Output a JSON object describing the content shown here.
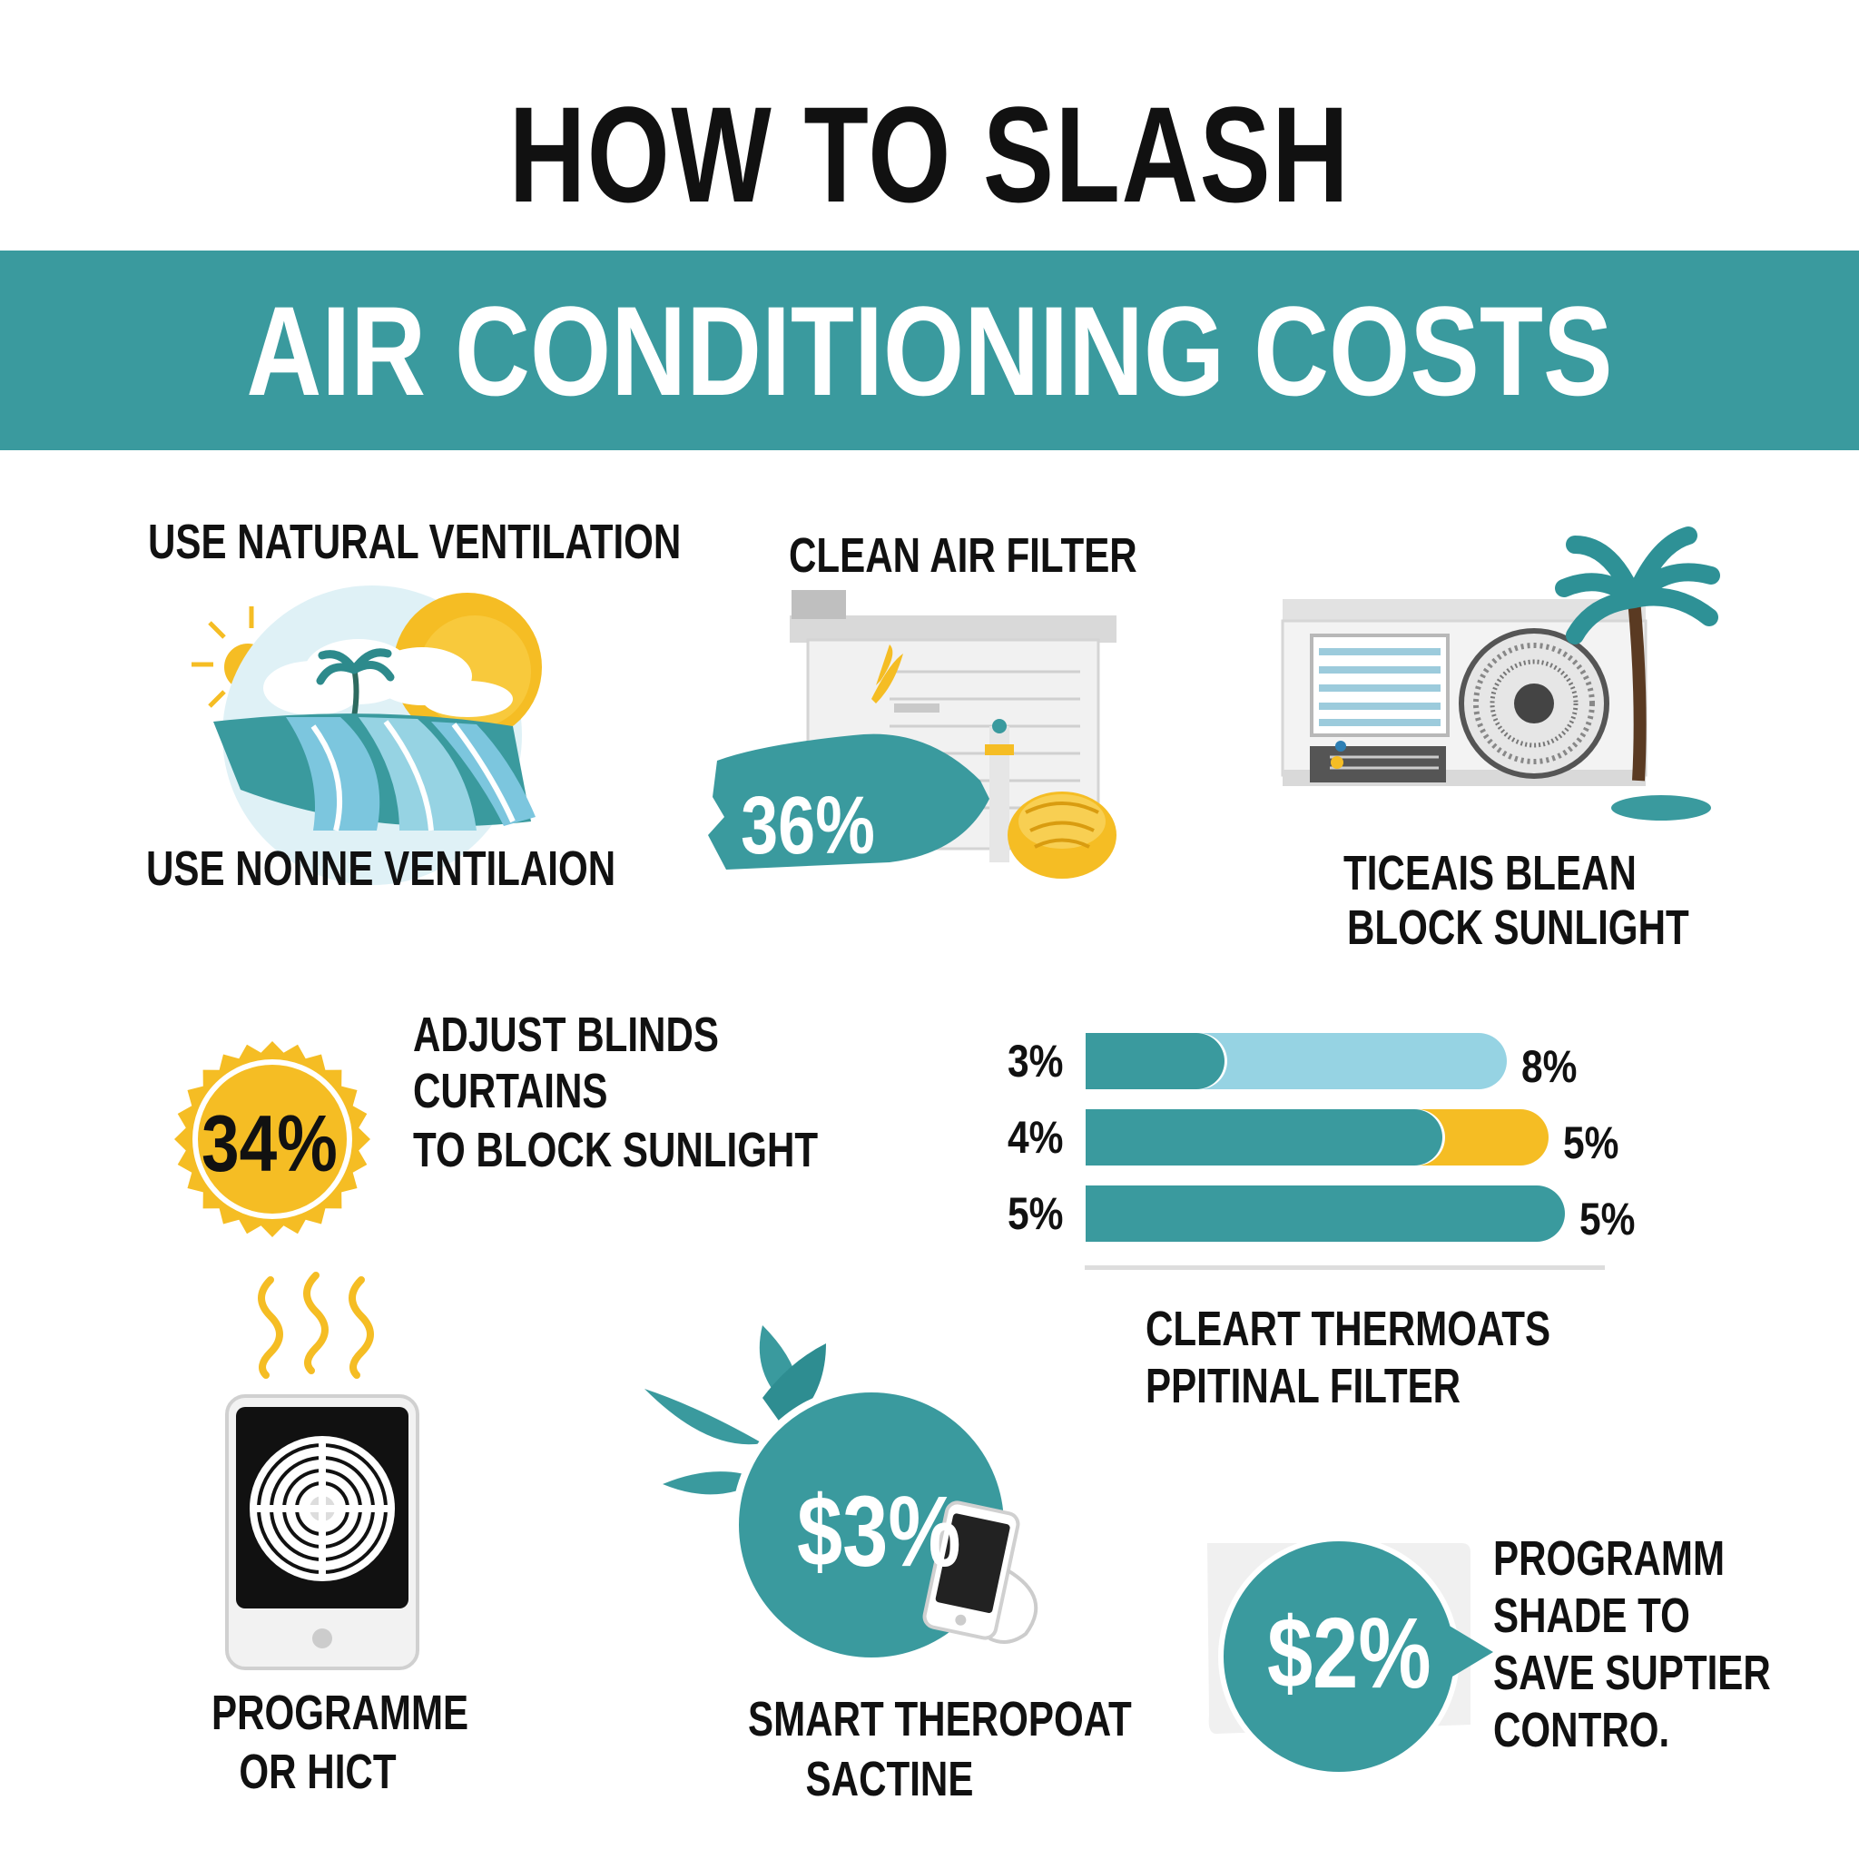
{
  "title": {
    "line1": "HOW TO SLASH",
    "line2": "AIR CONDITIONING COSTS"
  },
  "colors": {
    "teal": "#3a9a9e",
    "light_blue": "#96d3e3",
    "yellow": "#f5bd24",
    "text": "#111111",
    "white": "#ffffff"
  },
  "tips": {
    "natural_ventilation": {
      "heading": "USE NATURAL VENTILATION",
      "caption": "USE NONNE VENTILAION",
      "icon": "beach-sun-wave-icon"
    },
    "clean_filter": {
      "heading": "CLEAN AIR FILTER",
      "badge": "36%",
      "icon": "air-filter-cleaning-icon"
    },
    "block_sunlight": {
      "caption_line1": "TICEAIS BLEAN",
      "caption_line2": "BLOCK SUNLIGHT",
      "icon": "ac-unit-palm-icon"
    },
    "adjust_blinds": {
      "badge": "34%",
      "line1": "ADJUST BLINDS",
      "line2": "CURTAINS",
      "line3": "TO BLOCK SUNLIGHT",
      "icon": "seal-badge-icon"
    },
    "programme": {
      "line1": "PROGRAMME",
      "line2": "OR HICT",
      "icon": "heater-fan-icon"
    },
    "smart_thermostat": {
      "badge": "$3%",
      "line1": "SMART THEROPOAT",
      "line2": "SACTINE",
      "icon": "smartphone-leaf-icon"
    },
    "programm_shade": {
      "badge": "$2%",
      "line1": "PROGRAMM",
      "line2": "SHADE TO",
      "line3": "SAVE SUPTIER",
      "line4": "CONTRO.",
      "icon": "speech-bubble-icon"
    }
  },
  "bar_chart": {
    "caption_line1": "CLEART THERMOATS",
    "caption_line2": "PPITINAL FILTER",
    "rows": [
      {
        "left_label": "3%",
        "right_label": "8%",
        "first_fraction": 0.33,
        "second_color": "light_blue"
      },
      {
        "left_label": "4%",
        "right_label": "5%",
        "first_fraction": 0.77,
        "second_color": "yellow"
      },
      {
        "left_label": "5%",
        "right_label": "5%",
        "first_fraction": 1.0,
        "second_color": "none"
      }
    ]
  }
}
